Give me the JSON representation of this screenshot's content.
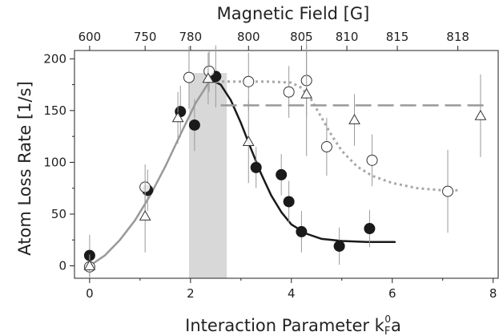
{
  "chart_data": {
    "type": "scatter",
    "xlabel": "Interaction Parameter k",
    "xlabel_sub": "F",
    "xlabel_sup": "0",
    "xlabel_end": "a",
    "ylabel": "Atom Loss Rate [1/s]",
    "top_axis_label": "Magnetic Field [G]",
    "xlim": [
      -0.3,
      8.1
    ],
    "ylim": [
      -12,
      208
    ],
    "x_ticks": [
      0,
      2,
      4,
      6,
      8
    ],
    "y_ticks": [
      0,
      50,
      100,
      150,
      200
    ],
    "top_ticks": [
      {
        "label": "600",
        "x": 0.0
      },
      {
        "label": "750",
        "x": 1.1
      },
      {
        "label": "780",
        "x": 2.0
      },
      {
        "label": "800",
        "x": 3.15
      },
      {
        "label": "805",
        "x": 4.2
      },
      {
        "label": "810",
        "x": 5.1
      },
      {
        "label": "815",
        "x": 6.1
      },
      {
        "label": "818",
        "x": 7.3
      }
    ],
    "shaded_region": {
      "x": [
        1.97,
        2.72
      ],
      "color": "#d8d8d8"
    },
    "series": [
      {
        "marker": "filled-circle",
        "color": "#1a1a1a",
        "points": [
          {
            "x": 0.0,
            "y": 10,
            "err": 20
          },
          {
            "x": 1.15,
            "y": 73,
            "err": 20
          },
          {
            "x": 1.8,
            "y": 149,
            "err": 25
          },
          {
            "x": 2.08,
            "y": 136,
            "err": 25
          },
          {
            "x": 2.5,
            "y": 183,
            "err": 30
          },
          {
            "x": 3.3,
            "y": 95,
            "err": 20
          },
          {
            "x": 3.8,
            "y": 88,
            "err": 20
          },
          {
            "x": 3.95,
            "y": 62,
            "err": 20
          },
          {
            "x": 4.2,
            "y": 33,
            "err": 20
          },
          {
            "x": 4.95,
            "y": 19,
            "err": 18
          },
          {
            "x": 5.55,
            "y": 36,
            "err": 18
          }
        ]
      },
      {
        "marker": "open-circle",
        "color": "#333333",
        "points": [
          {
            "x": 0.0,
            "y": -1,
            "err": 12
          },
          {
            "x": 1.1,
            "y": 76,
            "err": 22
          },
          {
            "x": 1.97,
            "y": 182,
            "err": 30
          },
          {
            "x": 2.37,
            "y": 188,
            "err": 20
          },
          {
            "x": 3.15,
            "y": 178,
            "err": 28
          },
          {
            "x": 3.95,
            "y": 168,
            "err": 25
          },
          {
            "x": 4.3,
            "y": 179,
            "err": 35
          },
          {
            "x": 4.7,
            "y": 115,
            "err": 28
          },
          {
            "x": 5.6,
            "y": 102,
            "err": 25
          },
          {
            "x": 7.1,
            "y": 72,
            "err": 40
          }
        ]
      },
      {
        "marker": "open-triangle",
        "color": "#333333",
        "points": [
          {
            "x": 0.0,
            "y": 0,
            "err": 10
          },
          {
            "x": 1.1,
            "y": 48,
            "err": 35
          },
          {
            "x": 1.75,
            "y": 143,
            "err": 25
          },
          {
            "x": 2.35,
            "y": 181,
            "err": 25
          },
          {
            "x": 3.15,
            "y": 120,
            "err": 40
          },
          {
            "x": 4.3,
            "y": 166,
            "err": 60
          },
          {
            "x": 5.25,
            "y": 141,
            "err": 25
          },
          {
            "x": 7.75,
            "y": 145,
            "err": 40
          }
        ]
      }
    ],
    "curves": [
      {
        "style": "solid",
        "color": "#999999",
        "points": [
          {
            "x": 0.0,
            "y": 0
          },
          {
            "x": 0.3,
            "y": 10
          },
          {
            "x": 0.6,
            "y": 25
          },
          {
            "x": 0.9,
            "y": 44
          },
          {
            "x": 1.2,
            "y": 68
          },
          {
            "x": 1.5,
            "y": 96
          },
          {
            "x": 1.8,
            "y": 127
          },
          {
            "x": 2.1,
            "y": 157
          },
          {
            "x": 2.4,
            "y": 180
          }
        ]
      },
      {
        "style": "solid",
        "color": "#1a1a1a",
        "points": [
          {
            "x": 2.4,
            "y": 180
          },
          {
            "x": 2.6,
            "y": 175
          },
          {
            "x": 2.8,
            "y": 160
          },
          {
            "x": 3.0,
            "y": 138
          },
          {
            "x": 3.2,
            "y": 113
          },
          {
            "x": 3.4,
            "y": 89
          },
          {
            "x": 3.6,
            "y": 68
          },
          {
            "x": 3.8,
            "y": 52
          },
          {
            "x": 4.0,
            "y": 40
          },
          {
            "x": 4.3,
            "y": 31
          },
          {
            "x": 4.6,
            "y": 26
          },
          {
            "x": 5.0,
            "y": 24
          },
          {
            "x": 5.5,
            "y": 23
          },
          {
            "x": 6.05,
            "y": 23
          }
        ]
      },
      {
        "style": "dotted",
        "color": "#a8a8a8",
        "points": [
          {
            "x": 2.4,
            "y": 178
          },
          {
            "x": 3.0,
            "y": 178
          },
          {
            "x": 3.5,
            "y": 178
          },
          {
            "x": 4.0,
            "y": 177
          },
          {
            "x": 4.2,
            "y": 172
          },
          {
            "x": 4.4,
            "y": 160
          },
          {
            "x": 4.6,
            "y": 143
          },
          {
            "x": 4.8,
            "y": 126
          },
          {
            "x": 5.0,
            "y": 111
          },
          {
            "x": 5.3,
            "y": 96
          },
          {
            "x": 5.6,
            "y": 87
          },
          {
            "x": 6.0,
            "y": 80
          },
          {
            "x": 6.5,
            "y": 75
          },
          {
            "x": 7.0,
            "y": 73
          },
          {
            "x": 7.35,
            "y": 73
          }
        ]
      },
      {
        "style": "dashed",
        "color": "#999999",
        "points": [
          {
            "x": 2.6,
            "y": 155
          },
          {
            "x": 7.9,
            "y": 155
          }
        ]
      }
    ]
  }
}
